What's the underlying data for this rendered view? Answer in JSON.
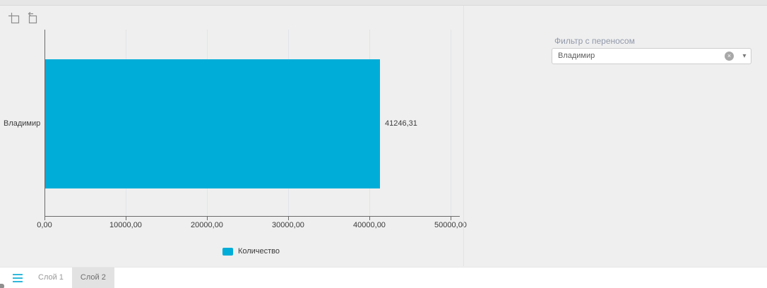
{
  "toolbar": {
    "buttons": [
      {
        "name": "crop-select",
        "icon": "crop-select-icon"
      },
      {
        "name": "undo-crop",
        "icon": "undo-crop-icon"
      }
    ]
  },
  "chart_data": {
    "type": "bar",
    "orientation": "horizontal",
    "title": "",
    "xlabel": "",
    "ylabel": "",
    "categories": [
      "Владимир"
    ],
    "series": [
      {
        "name": "Количество",
        "values": [
          41246.31
        ],
        "color": "#00ADD8"
      }
    ],
    "value_labels": [
      "41246,31"
    ],
    "x_ticks": [
      {
        "label": "0,00",
        "value": 0
      },
      {
        "label": "10000,00",
        "value": 10000
      },
      {
        "label": "20000,00",
        "value": 20000
      },
      {
        "label": "30000,00",
        "value": 30000
      },
      {
        "label": "40000,00",
        "value": 40000
      },
      {
        "label": "50000,00",
        "value": 50000
      }
    ],
    "xlim": [
      0,
      50000
    ],
    "grid": true,
    "legend_position": "bottom"
  },
  "legend": {
    "items": [
      {
        "label": "Количество",
        "color": "#00ADD8"
      }
    ]
  },
  "filter": {
    "label": "Фильтр с переносом",
    "value": "Владимир",
    "clear_icon": "×",
    "caret_icon": "▾"
  },
  "layers_bar": {
    "menu_icon": "hamburger-icon",
    "tabs": [
      {
        "label": "Слой 1",
        "selected": false
      },
      {
        "label": "Слой 2",
        "selected": true
      }
    ]
  },
  "colors": {
    "accent": "#00ADD8",
    "axis": "#6b6b6b",
    "gridline": "#e2e4e8",
    "page_background": "#efefef",
    "selected_tab_background": "#e2e2e2"
  }
}
